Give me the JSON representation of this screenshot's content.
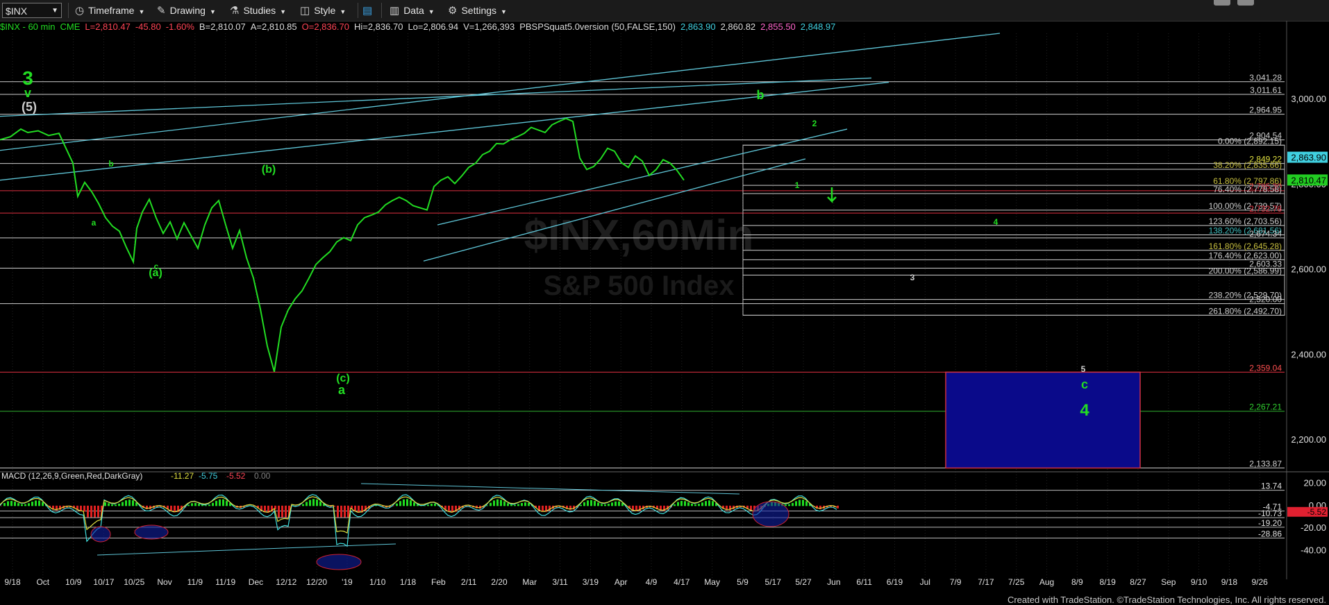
{
  "toolbar": {
    "symbol": "$INX",
    "timeframe": "Timeframe",
    "drawing": "Drawing",
    "studies": "Studies",
    "style": "Style",
    "data": "Data",
    "settings": "Settings"
  },
  "infobar": {
    "name": "$INX - 60 min",
    "exchange": "CME",
    "last": "L=2,810.47",
    "change": "-45.80",
    "pct": "-1.60%",
    "bid": "B=2,810.07",
    "ask": "A=2,810.85",
    "open": "O=2,836.70",
    "high": "Hi=2,836.70",
    "low": "Lo=2,806.94",
    "volume": "V=1,266,393",
    "study": "PBSPSquat5.0version (50,FALSE,150)",
    "s1": "2,863.90",
    "s2": "2,860.82",
    "s3": "2,855.50",
    "s4": "2,848.97"
  },
  "colors": {
    "background": "#000000",
    "price": "#22dd22",
    "down": "#ff4455",
    "trendline": "#5fc6d8",
    "hline": "#d8d8d8",
    "target_box": "#0a0a8a",
    "wave_label": "#22dd22"
  },
  "chart_data": [
    {
      "type": "line",
      "title": "",
      "watermark": [
        "$INX,60Min",
        "S&P 500 Index"
      ],
      "x_tick_labels": [
        "9/18",
        "Oct",
        "10/9",
        "10/17",
        "10/25",
        "Nov",
        "11/9",
        "11/19",
        "Dec",
        "12/12",
        "12/20",
        "'19",
        "1/10",
        "1/18",
        "Feb",
        "2/11",
        "2/20",
        "Mar",
        "3/11",
        "3/19",
        "Apr",
        "4/9",
        "4/17",
        "May",
        "5/9",
        "5/17",
        "5/27",
        "Jun",
        "6/11",
        "6/19",
        "Jul",
        "7/9",
        "7/17",
        "7/25",
        "Aug",
        "8/9",
        "8/19",
        "8/27",
        "Sep",
        "9/10",
        "9/18",
        "9/26"
      ],
      "y_ticks": [
        "3,000.00",
        "2,800.00",
        "2,600.00",
        "2,400.00",
        "2,200.00"
      ],
      "ylim": [
        2125,
        3155
      ],
      "series": [
        {
          "values_x": [
            0,
            15,
            30,
            40,
            55,
            70,
            85,
            95,
            105,
            112,
            122,
            132,
            142,
            152,
            162,
            172,
            182,
            192,
            197,
            205,
            215,
            225,
            235,
            245,
            255,
            265,
            275,
            285,
            295,
            305,
            315,
            325,
            335,
            345,
            355,
            365,
            375,
            385,
            395,
            405,
            415,
            425,
            435,
            445,
            455,
            465,
            475,
            485,
            495,
            505,
            515,
            525,
            535,
            545,
            555,
            565,
            575,
            585,
            595,
            605,
            615,
            625,
            635,
            645,
            655,
            665,
            675,
            685,
            695,
            705,
            715,
            725,
            735,
            745,
            755,
            765,
            775,
            785,
            795,
            805,
            815,
            825,
            835,
            845,
            855,
            865,
            875,
            885,
            895,
            905,
            915,
            925,
            935,
            945,
            955,
            965,
            975,
            985
          ],
          "values_y": [
            2905,
            2912,
            2930,
            2922,
            2926,
            2915,
            2920,
            2885,
            2850,
            2772,
            2805,
            2783,
            2755,
            2722,
            2702,
            2690,
            2652,
            2618,
            2697,
            2735,
            2765,
            2721,
            2685,
            2712,
            2672,
            2710,
            2680,
            2650,
            2705,
            2745,
            2762,
            2705,
            2650,
            2692,
            2628,
            2580,
            2507,
            2420,
            2360,
            2465,
            2505,
            2531,
            2550,
            2580,
            2612,
            2628,
            2642,
            2665,
            2675,
            2668,
            2705,
            2722,
            2728,
            2735,
            2752,
            2762,
            2770,
            2762,
            2750,
            2745,
            2740,
            2795,
            2810,
            2818,
            2802,
            2820,
            2840,
            2850,
            2870,
            2878,
            2896,
            2895,
            2905,
            2912,
            2920,
            2934,
            2928,
            2922,
            2940,
            2948,
            2955,
            2948,
            2862,
            2835,
            2842,
            2860,
            2885,
            2878,
            2851,
            2840,
            2867,
            2855,
            2821,
            2835,
            2858,
            2850,
            2833,
            2810
          ]
        }
      ],
      "levels": [
        {
          "label": "3,041.28",
          "value": 3041.28
        },
        {
          "label": "3,011.61",
          "value": 3011.61
        },
        {
          "label": "2,964.95",
          "value": 2964.95
        },
        {
          "label": "2,904.54",
          "value": 2904.54
        },
        {
          "label": "0.00% (2,892.15)",
          "value": 2892.15
        },
        {
          "label": "2,849.22",
          "value": 2849.22
        },
        {
          "label": "38.20% (2,835.66)",
          "value": 2835.66
        },
        {
          "label": "61.80% (2,797.86)",
          "value": 2797.86
        },
        {
          "label": "2,785.30",
          "value": 2785.3
        },
        {
          "label": "76.40% (2,778.58)",
          "value": 2778.58
        },
        {
          "label": "100.00% (2,739.57)",
          "value": 2739.57
        },
        {
          "label": "2,732.76",
          "value": 2732.76
        },
        {
          "label": "123.60% (2,703.56)",
          "value": 2703.56
        },
        {
          "label": "138.20% (2,681.56)",
          "value": 2681.56
        },
        {
          "label": "2,674.34",
          "value": 2674.34
        },
        {
          "label": "161.80% (2,645.28)",
          "value": 2645.28
        },
        {
          "label": "176.40% (2,623.00)",
          "value": 2623.0
        },
        {
          "label": "2,603.33",
          "value": 2603.33
        },
        {
          "label": "200.00% (2,586.99)",
          "value": 2586.99
        },
        {
          "label": "238.20% (2,529.70)",
          "value": 2529.7
        },
        {
          "label": "2,520.00",
          "value": 2520.0
        },
        {
          "label": "261.80% (2,492.70)",
          "value": 2492.7
        },
        {
          "label": "2,359.04",
          "value": 2359.04
        },
        {
          "label": "2,267.21",
          "value": 2267.21
        },
        {
          "label": "2,133.87",
          "value": 2133.87
        }
      ],
      "price_markers": [
        {
          "label": "2,863.90",
          "value": 2863.9,
          "color": "#40d0e0"
        },
        {
          "label": "2,810.47",
          "value": 2810.47,
          "color": "#22cc22"
        }
      ],
      "wave_labels": [
        {
          "text": "3",
          "size": "big"
        },
        {
          "text": "v",
          "size": "med"
        },
        {
          "text": "(5)",
          "size": "med"
        },
        {
          "text": "b",
          "size": "small"
        },
        {
          "text": "a",
          "size": "small"
        },
        {
          "text": "c",
          "size": "small"
        },
        {
          "text": "(a)",
          "size": "med"
        },
        {
          "text": "(b)",
          "size": "med"
        },
        {
          "text": "(c)",
          "size": "med"
        },
        {
          "text": "a",
          "size": "med"
        },
        {
          "text": "b",
          "size": "med"
        },
        {
          "text": "2",
          "size": "small"
        },
        {
          "text": "1",
          "size": "small"
        },
        {
          "text": "3",
          "size": "small"
        },
        {
          "text": "4",
          "size": "small"
        },
        {
          "text": "5",
          "size": "small"
        },
        {
          "text": "c",
          "size": "med"
        },
        {
          "text": "4",
          "size": "big"
        }
      ]
    },
    {
      "type": "line",
      "title": "MACD (12,26,9,Green,Red,DarkGray)",
      "legend_values": [
        "-11.27",
        "-5.75",
        "-5.52",
        "0.00"
      ],
      "y_ticks": [
        "20.00",
        "0.00",
        "-20.00",
        "-40.00"
      ],
      "ylim": [
        -44,
        24
      ],
      "levels": [
        {
          "label": "13.74",
          "value": 13.74
        },
        {
          "label": "-4.71",
          "value": -4.71
        },
        {
          "label": "-10.73",
          "value": -10.73
        },
        {
          "label": "-19.20",
          "value": -19.2
        },
        {
          "label": "-28.86",
          "value": -28.86
        }
      ],
      "price_marker": {
        "label": "-5.52",
        "value": -5.52
      }
    }
  ],
  "footer": "Created with TradeStation. ©TradeStation Technologies, Inc. All rights reserved."
}
